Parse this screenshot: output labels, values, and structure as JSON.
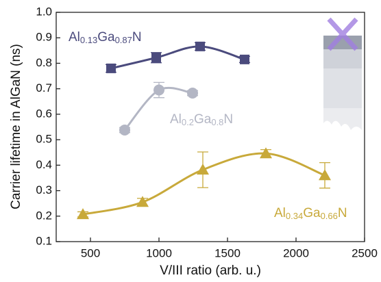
{
  "chart_data": {
    "type": "scatter",
    "x_label": "V/III ratio (arb. u.)",
    "y_label": "Carrier lifetime in AlGaN (ns)",
    "xlim": [
      250,
      2500
    ],
    "xticks": [
      500,
      1000,
      1500,
      2000,
      2500
    ],
    "ylim": [
      0.1,
      1.0
    ],
    "yticks": [
      0.1,
      0.2,
      0.3,
      0.4,
      0.5,
      0.6,
      0.7,
      0.8,
      0.9,
      {
        "value": 1,
        "label": "1.0"
      }
    ],
    "series": [
      {
        "name": "Al0.13Ga0.87N",
        "color": "#4b4b7d",
        "marker": "square",
        "x": [
          650,
          980,
          1300,
          1625
        ],
        "values": [
          0.78,
          0.822,
          0.866,
          0.815
        ],
        "errors": [
          0.015,
          0.02,
          0.015,
          0.012
        ]
      },
      {
        "name": "Al0.2Ga0.8N",
        "color": "#b3b6c4",
        "marker": "circle",
        "x": [
          750,
          1000,
          1245
        ],
        "values": [
          0.538,
          0.695,
          0.683
        ],
        "errors": [
          0.01,
          0.03,
          0.01
        ]
      },
      {
        "name": "Al0.34Ga0.66N",
        "color": "#c8a93a",
        "marker": "triangle",
        "x": [
          445,
          880,
          1320,
          1780,
          2210
        ],
        "values": [
          0.207,
          0.255,
          0.382,
          0.446,
          0.36
        ],
        "errors": [
          0.01,
          0.015,
          0.07,
          0.015,
          0.05
        ]
      }
    ]
  }
}
